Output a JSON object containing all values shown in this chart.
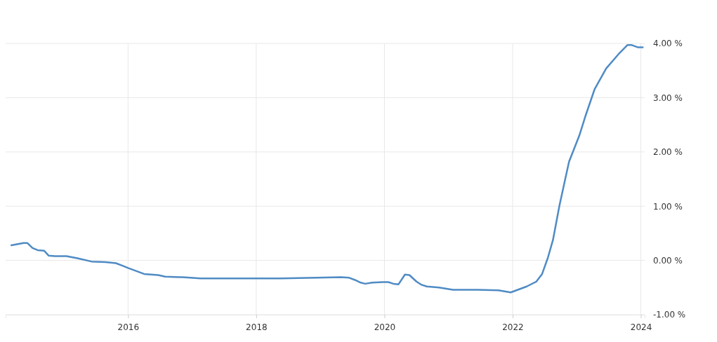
{
  "chart_data": {
    "type": "line",
    "x": [
      2014.18,
      2014.37,
      2014.43,
      2014.51,
      2014.59,
      2014.69,
      2014.76,
      2014.86,
      2015.04,
      2015.21,
      2015.43,
      2015.65,
      2015.81,
      2015.92,
      2016.0,
      2016.14,
      2016.25,
      2016.47,
      2016.58,
      2016.85,
      2017.13,
      2017.62,
      2018.39,
      2018.94,
      2019.32,
      2019.45,
      2019.54,
      2019.63,
      2019.7,
      2019.81,
      2019.98,
      2020.06,
      2020.14,
      2020.22,
      2020.32,
      2020.39,
      2020.5,
      2020.58,
      2020.66,
      2020.85,
      2021.07,
      2021.45,
      2021.78,
      2021.97,
      2022.22,
      2022.37,
      2022.46,
      2022.55,
      2022.63,
      2022.73,
      2022.88,
      2023.04,
      2023.13,
      2023.28,
      2023.46,
      2023.65,
      2023.79,
      2023.86,
      2023.95,
      2024.03
    ],
    "series": [
      {
        "color": "#4f8bc4",
        "values": [
          0.28,
          0.32,
          0.32,
          0.23,
          0.19,
          0.18,
          0.09,
          0.08,
          0.08,
          0.04,
          -0.02,
          -0.03,
          -0.05,
          -0.1,
          -0.14,
          -0.2,
          -0.25,
          -0.27,
          -0.3,
          -0.31,
          -0.33,
          -0.33,
          -0.33,
          -0.32,
          -0.31,
          -0.32,
          -0.36,
          -0.41,
          -0.43,
          -0.41,
          -0.4,
          -0.4,
          -0.43,
          -0.44,
          -0.26,
          -0.27,
          -0.39,
          -0.45,
          -0.48,
          -0.5,
          -0.54,
          -0.54,
          -0.55,
          -0.59,
          -0.48,
          -0.39,
          -0.25,
          0.05,
          0.38,
          1.01,
          1.82,
          2.3,
          2.64,
          3.16,
          3.54,
          3.8,
          3.97,
          3.97,
          3.93,
          3.93
        ]
      }
    ],
    "xlim": [
      2014.09,
      2024.06
    ],
    "xticks": [
      2016,
      2018,
      2020,
      2022,
      2024
    ],
    "ylim": [
      -1,
      4
    ],
    "yticks": [
      {
        "value": -1,
        "label": "-1.00 %"
      },
      {
        "value": 0,
        "label": "0.00 %"
      },
      {
        "value": 1,
        "label": "1.00 %"
      },
      {
        "value": 2,
        "label": "2.00 %"
      },
      {
        "value": 3,
        "label": "3.00 %"
      },
      {
        "value": 4,
        "label": "4.00 %"
      }
    ],
    "grid": true,
    "marker": "none",
    "line_style": "solid"
  }
}
